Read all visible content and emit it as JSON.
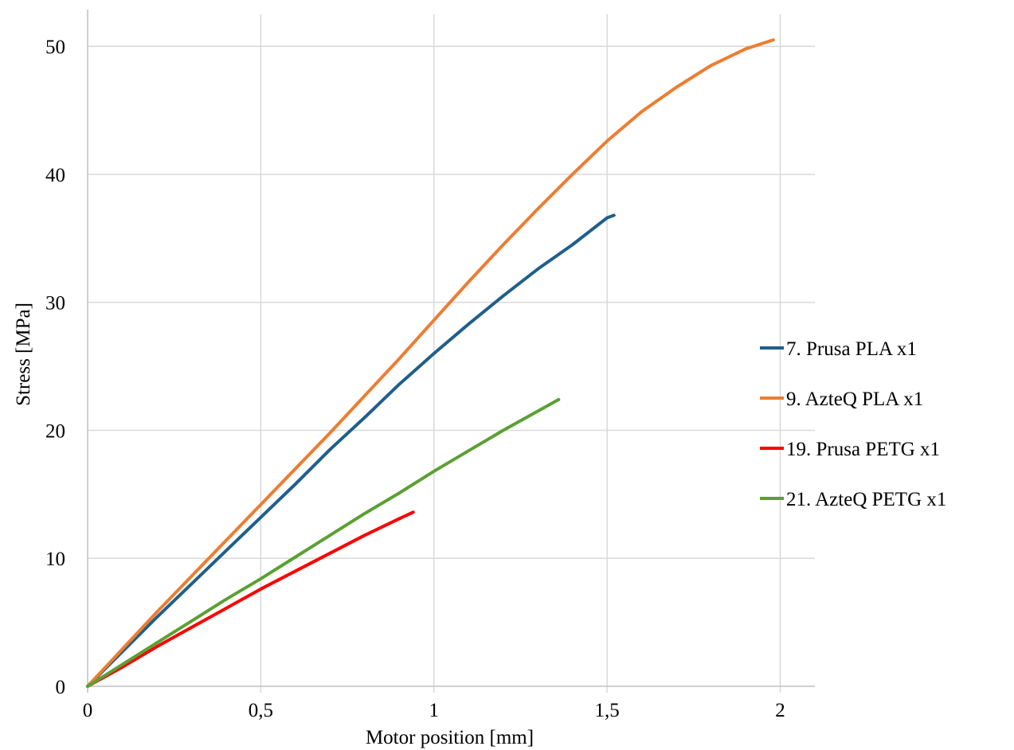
{
  "chart_data": {
    "type": "line",
    "title": "",
    "xlabel": "Motor position [mm]",
    "ylabel": "Stress [MPa]",
    "xlim": [
      0,
      2.1
    ],
    "ylim": [
      0,
      52.5
    ],
    "x_ticks": [
      0,
      0.5,
      1,
      1.5,
      2
    ],
    "x_tick_labels": [
      "0",
      "0,5",
      "1",
      "1,5",
      "2"
    ],
    "y_ticks": [
      0,
      10,
      20,
      30,
      40,
      50
    ],
    "y_tick_labels": [
      "0",
      "10",
      "20",
      "30",
      "40",
      "50"
    ],
    "grid": true,
    "legend_position": "right",
    "series": [
      {
        "name": "7. Prusa PLA x1",
        "color": "#1f5f8b",
        "points": [
          [
            0,
            0
          ],
          [
            0.1,
            2.7
          ],
          [
            0.2,
            5.4
          ],
          [
            0.3,
            8.0
          ],
          [
            0.4,
            10.6
          ],
          [
            0.5,
            13.2
          ],
          [
            0.6,
            15.8
          ],
          [
            0.7,
            18.5
          ],
          [
            0.8,
            21.0
          ],
          [
            0.9,
            23.6
          ],
          [
            1.0,
            26.0
          ],
          [
            1.1,
            28.3
          ],
          [
            1.2,
            30.5
          ],
          [
            1.3,
            32.6
          ],
          [
            1.4,
            34.5
          ],
          [
            1.5,
            36.6
          ],
          [
            1.52,
            36.8
          ]
        ]
      },
      {
        "name": "9. AzteQ PLA x1",
        "color": "#ed7d31",
        "points": [
          [
            0,
            0
          ],
          [
            0.1,
            2.9
          ],
          [
            0.2,
            5.8
          ],
          [
            0.3,
            8.6
          ],
          [
            0.4,
            11.4
          ],
          [
            0.5,
            14.2
          ],
          [
            0.6,
            17.0
          ],
          [
            0.7,
            19.8
          ],
          [
            0.8,
            22.7
          ],
          [
            0.9,
            25.6
          ],
          [
            1.0,
            28.6
          ],
          [
            1.1,
            31.6
          ],
          [
            1.2,
            34.5
          ],
          [
            1.3,
            37.3
          ],
          [
            1.4,
            40.0
          ],
          [
            1.5,
            42.6
          ],
          [
            1.6,
            44.9
          ],
          [
            1.7,
            46.8
          ],
          [
            1.8,
            48.5
          ],
          [
            1.9,
            49.8
          ],
          [
            1.98,
            50.5
          ]
        ]
      },
      {
        "name": "19. Prusa PETG x1",
        "color": "#ff0000",
        "points": [
          [
            0,
            0
          ],
          [
            0.1,
            1.5
          ],
          [
            0.2,
            3.1
          ],
          [
            0.3,
            4.6
          ],
          [
            0.4,
            6.1
          ],
          [
            0.5,
            7.6
          ],
          [
            0.6,
            9.0
          ],
          [
            0.7,
            10.4
          ],
          [
            0.8,
            11.8
          ],
          [
            0.9,
            13.1
          ],
          [
            0.94,
            13.6
          ]
        ]
      },
      {
        "name": "21. AzteQ PETG x1",
        "color": "#5ba033",
        "points": [
          [
            0,
            0
          ],
          [
            0.1,
            1.7
          ],
          [
            0.2,
            3.4
          ],
          [
            0.3,
            5.1
          ],
          [
            0.4,
            6.8
          ],
          [
            0.5,
            8.4
          ],
          [
            0.6,
            10.1
          ],
          [
            0.7,
            11.8
          ],
          [
            0.8,
            13.5
          ],
          [
            0.9,
            15.1
          ],
          [
            1.0,
            16.8
          ],
          [
            1.1,
            18.4
          ],
          [
            1.2,
            20.0
          ],
          [
            1.3,
            21.5
          ],
          [
            1.36,
            22.4
          ]
        ]
      }
    ]
  }
}
